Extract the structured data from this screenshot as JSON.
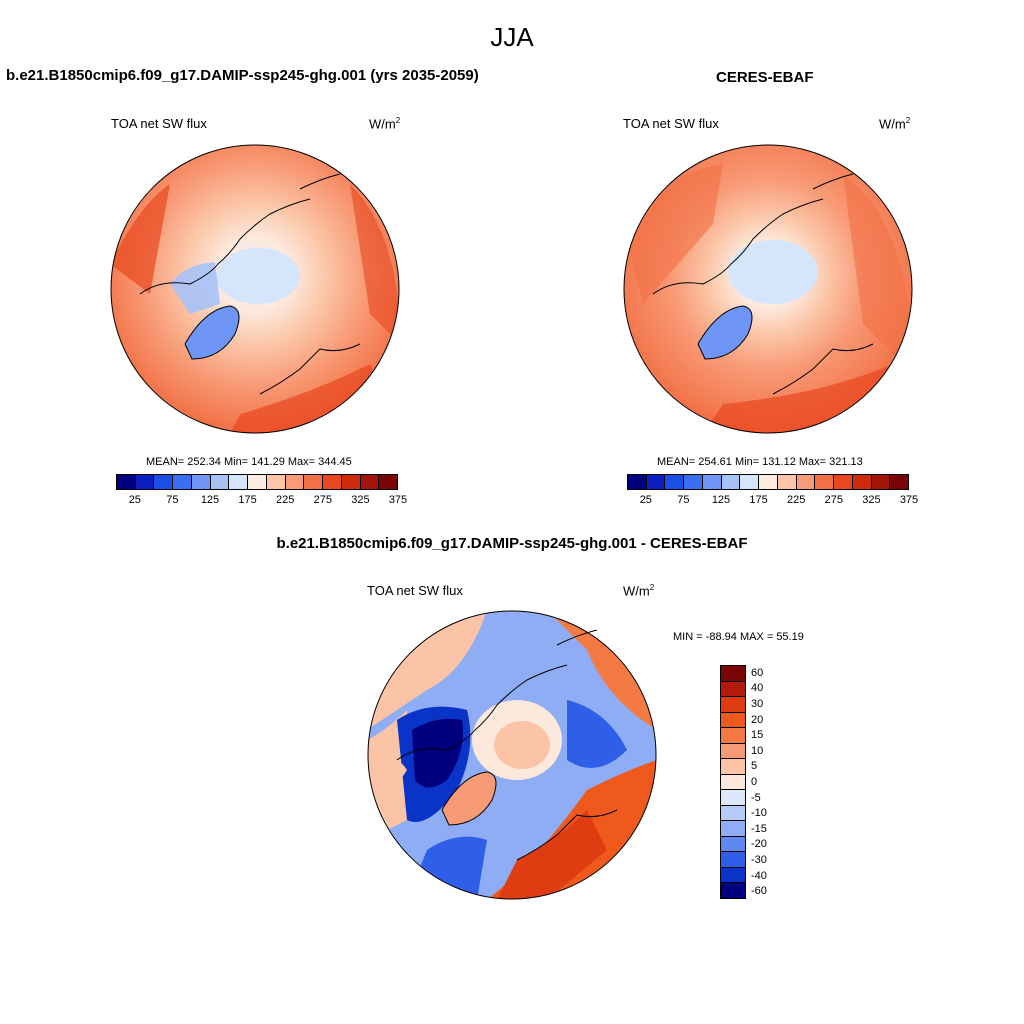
{
  "title": "JJA",
  "panels": {
    "model": {
      "title": "b.e21.B1850cmip6.f09_g17.DAMIP-ssp245-ghg.001 (yrs 2035-2059)",
      "variable": "TOA net SW flux",
      "units": "W/m",
      "units_exp": "2",
      "stats": "MEAN= 252.34  Min= 141.29  Max= 344.45"
    },
    "obs": {
      "title": "CERES-EBAF",
      "variable": "TOA net SW flux",
      "units": "W/m",
      "units_exp": "2",
      "stats": "MEAN= 254.61  Min= 131.12  Max= 321.13"
    },
    "diff": {
      "title": "b.e21.B1850cmip6.f09_g17.DAMIP-ssp245-ghg.001 - CERES-EBAF",
      "variable": "TOA net SW flux",
      "units": "W/m",
      "units_exp": "2",
      "stats": "MIN = -88.94 MAX =  55.19"
    }
  },
  "colorbar_abs": {
    "colors": [
      "#00007f",
      "#0a1fbf",
      "#1a4fe6",
      "#3b6ff2",
      "#6f96f7",
      "#a7c2f7",
      "#d5e5fb",
      "#fdebe0",
      "#fbc6a8",
      "#f89b77",
      "#f27045",
      "#e8471f",
      "#cc2b0c",
      "#a3150a",
      "#7a0506"
    ],
    "ticks": [
      "25",
      "75",
      "125",
      "175",
      "225",
      "275",
      "325",
      "375"
    ]
  },
  "colorbar_diff": {
    "colors": [
      "#7a0506",
      "#b21a0b",
      "#e03c12",
      "#f0591c",
      "#f47a44",
      "#f79b77",
      "#fbc4a6",
      "#fde8dc",
      "#dde8fb",
      "#b6ccf8",
      "#8eadf5",
      "#5f88f0",
      "#2f5ee8",
      "#0a33c7",
      "#00007f"
    ],
    "ticks": [
      "60",
      "40",
      "30",
      "20",
      "15",
      "10",
      "5",
      "0",
      "-5",
      "-10",
      "-15",
      "-20",
      "-30",
      "-40",
      "-60"
    ]
  }
}
